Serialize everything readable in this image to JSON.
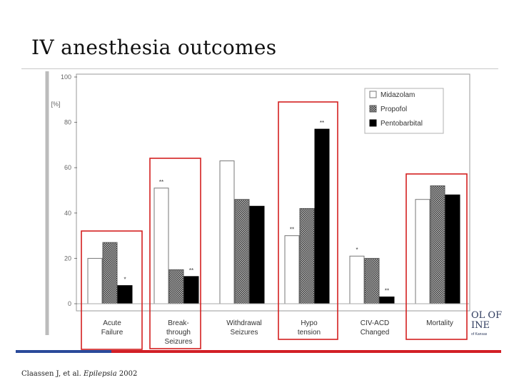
{
  "slide": {
    "title": "IV anesthesia outcomes",
    "citation_prefix": "Claassen J, et al. ",
    "citation_journal": "Epilepsia",
    "citation_year": " 2002",
    "logo_line1": "OL OF",
    "logo_line2": "INE",
    "logo_line3": "of Kansas"
  },
  "colors": {
    "accent_red": "#d21f26",
    "bar_blue": "#2a4a9a",
    "bar_red": "#d21f26",
    "highlight_box": "#d42020",
    "pentobarbital": "#000000",
    "midazolam": "#ffffff",
    "propofol": "#8a8a8a"
  },
  "chart_data": {
    "type": "bar",
    "ylabel": "[%]",
    "ylim": [
      0,
      100
    ],
    "yticks": [
      "0",
      "20",
      "40",
      "60",
      "80",
      "100"
    ],
    "categories": [
      [
        "Acute",
        "Failure"
      ],
      [
        "Break-",
        "through",
        "Seizures"
      ],
      [
        "Withdrawal",
        "Seizures"
      ],
      [
        "Hypo",
        "tension"
      ],
      [
        "CIV-ACD",
        "Changed"
      ],
      [
        "Mortality"
      ]
    ],
    "series": [
      {
        "name": "Midazolam",
        "values": [
          20,
          51,
          63,
          30,
          21,
          46
        ]
      },
      {
        "name": "Propofol",
        "values": [
          27,
          15,
          46,
          42,
          20,
          52
        ]
      },
      {
        "name": "Pentobarbital",
        "values": [
          8,
          12,
          43,
          77,
          3,
          48
        ]
      }
    ],
    "significance": [
      [
        "",
        "",
        "*"
      ],
      [
        "**",
        "",
        "**"
      ],
      [
        "",
        "",
        ""
      ],
      [
        "**",
        "",
        "**"
      ],
      [
        "*",
        "",
        "**"
      ],
      [
        "",
        "",
        ""
      ]
    ],
    "highlighted_categories": [
      0,
      1,
      3,
      5
    ],
    "legend_position": "top-right",
    "grid": false
  }
}
